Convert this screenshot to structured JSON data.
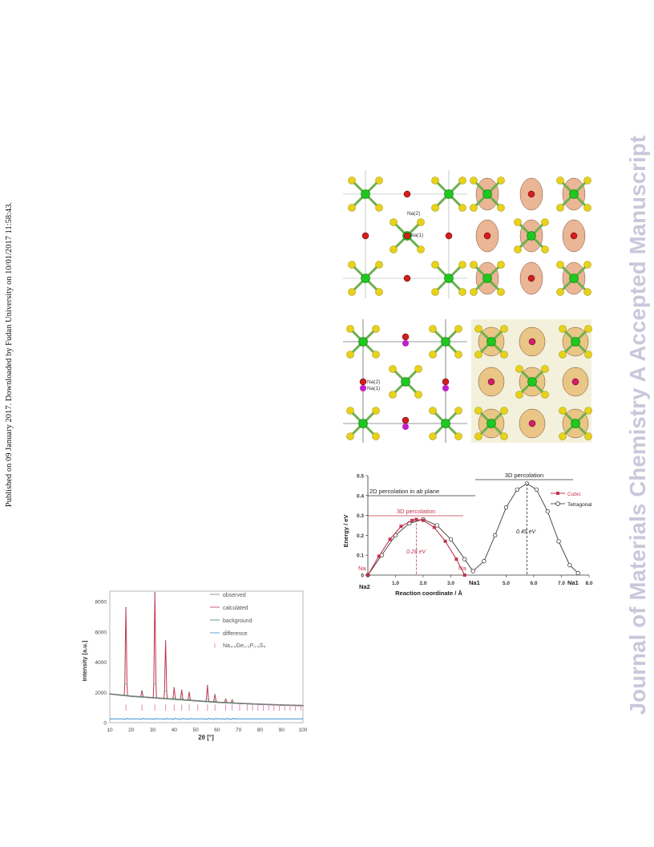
{
  "page": {
    "published_note": "Published on 09 January 2017. Downloaded by Fudan University on 10/01/2017 11:58:43.",
    "watermark": "Journal of Materials Chemistry A Accepted Manuscript"
  },
  "structure_panels": {
    "top_labels": {
      "na2": "Na(2)",
      "na1": "Na(1)"
    },
    "middle_labels": {
      "na2": "Na(2)",
      "na1": "Na(1)"
    }
  },
  "energy_chart": {
    "ylabel": "Energy / eV",
    "xlabel": "Reaction coordinate / Å",
    "yticks": [
      "0",
      "0.1",
      "0.2",
      "0.3",
      "0.4",
      "0.5"
    ],
    "xticks": [
      "1.0",
      "2.0",
      "3.0",
      "5.0",
      "6.0",
      "7.0",
      "8.0"
    ],
    "site_labels": {
      "na2": "Na2",
      "na1_mid": "Na1",
      "na1_end": "Na1",
      "na_left": "Na",
      "na_right": "Na"
    },
    "annotations": {
      "perc_3d_top": "3D percolation",
      "perc_2d": "2D percolation in ",
      "perc_2d_italic": "ab",
      "perc_2d_tail": " plane",
      "perc_3d_cubic": "3D percolation",
      "barrier_028": "0.28 eV",
      "barrier_045": "0.45 eV"
    },
    "legend": {
      "cubic": "Cubic",
      "tetragonal": "Tetragonal"
    },
    "colors": {
      "cubic": "#c0344e",
      "tetragonal": "#222222"
    }
  },
  "xrd_chart": {
    "ylabel": "Intensity [a.u.]",
    "xlabel": "2θ [°]",
    "yticks": [
      "0",
      "2000",
      "4000",
      "6000",
      "8000"
    ],
    "xticks": [
      "10",
      "20",
      "30",
      "40",
      "50",
      "60",
      "70",
      "80",
      "90",
      "100"
    ],
    "legend": {
      "observed": "observed",
      "calculated": "calculated",
      "background": "background",
      "difference": "difference",
      "phase": "Na₃.₅Ge₀.₅P₀.₅S₄"
    },
    "colors": {
      "observed": "#7a7a7a",
      "calculated": "#c0344e",
      "background": "#2f8f5a",
      "difference": "#3a8fcf",
      "ticks": "#e07fb0"
    }
  },
  "chart_data": [
    {
      "type": "line",
      "title": "",
      "xlabel": "Reaction coordinate / Å",
      "ylabel": "Energy / eV",
      "xlim": [
        0,
        8
      ],
      "ylim": [
        0,
        0.5
      ],
      "series": [
        {
          "name": "Cubic",
          "x": [
            0,
            0.4,
            0.8,
            1.2,
            1.6,
            1.75,
            2.0,
            2.4,
            2.8,
            3.2,
            3.5
          ],
          "y": [
            0,
            0.095,
            0.18,
            0.245,
            0.275,
            0.28,
            0.275,
            0.24,
            0.17,
            0.08,
            0
          ]
        },
        {
          "name": "Tetragonal",
          "x": [
            0,
            0.5,
            1.0,
            1.5,
            2.0,
            2.5,
            3.0,
            3.5,
            3.8,
            4.2,
            4.6,
            5.0,
            5.4,
            5.75,
            6.1,
            6.5,
            6.9,
            7.3,
            7.6
          ],
          "y": [
            0,
            0.1,
            0.2,
            0.26,
            0.28,
            0.25,
            0.18,
            0.08,
            0.02,
            0.07,
            0.2,
            0.34,
            0.43,
            0.46,
            0.43,
            0.32,
            0.17,
            0.05,
            0.01
          ]
        }
      ]
    },
    {
      "type": "line",
      "title": "",
      "xlabel": "2θ [°]",
      "ylabel": "Intensity [a.u.]",
      "xlim": [
        10,
        100
      ],
      "ylim": [
        0,
        8700
      ],
      "peaks": [
        {
          "x": 17.5,
          "y": 7600
        },
        {
          "x": 25,
          "y": 2100
        },
        {
          "x": 31,
          "y": 8600
        },
        {
          "x": 36,
          "y": 5400
        },
        {
          "x": 40,
          "y": 2300
        },
        {
          "x": 43.5,
          "y": 2150
        },
        {
          "x": 47,
          "y": 2000
        },
        {
          "x": 55.5,
          "y": 2450
        },
        {
          "x": 59,
          "y": 1850
        },
        {
          "x": 64,
          "y": 1550
        },
        {
          "x": 67,
          "y": 1500
        }
      ],
      "series": [
        {
          "name": "background",
          "x": [
            10,
            20,
            30,
            40,
            50,
            60,
            70,
            80,
            90,
            100
          ],
          "y": [
            1900,
            1750,
            1650,
            1550,
            1450,
            1350,
            1280,
            1220,
            1170,
            1130
          ]
        }
      ],
      "reflection_ticks_x": [
        17.5,
        25,
        31,
        36,
        40,
        43.5,
        47,
        51,
        55.5,
        59,
        64,
        67,
        70.5,
        74,
        76.5,
        79,
        81.5,
        84,
        86.5,
        89,
        91.5,
        94,
        96.5,
        99
      ]
    }
  ]
}
